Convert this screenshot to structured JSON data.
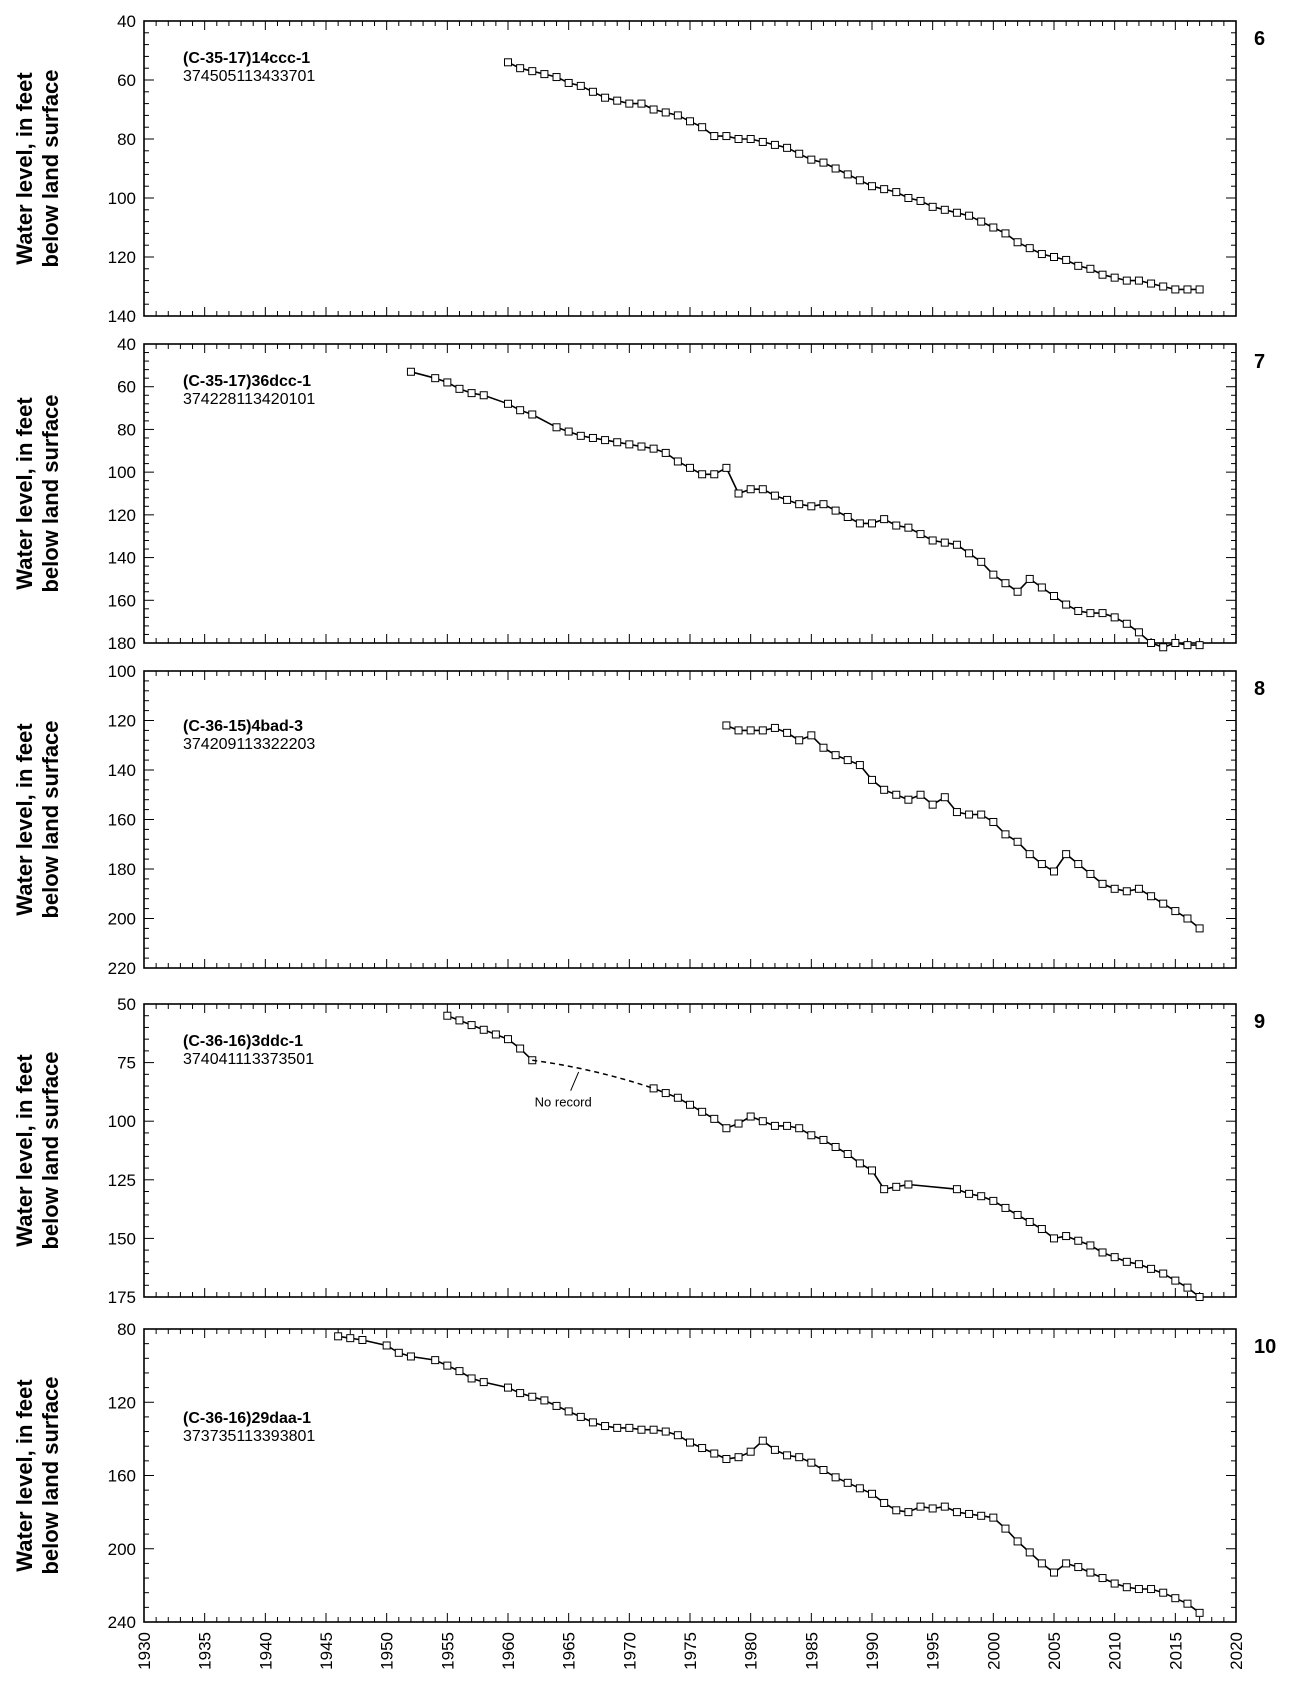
{
  "chart_data": [
    {
      "type": "line",
      "panel_number": "6",
      "well_name": "(C-35-17)14ccc-1",
      "site_id": "374505113433701",
      "ylabel": [
        "Water level, in feet",
        "below land surface"
      ],
      "ylim": [
        40,
        140
      ],
      "y_inverted": true,
      "y_ticks": [
        40,
        60,
        80,
        100,
        120,
        140
      ],
      "y_minor_step": 4,
      "xlim": [
        1930,
        2020
      ],
      "series": [
        {
          "x": [
            1960,
            1961,
            1962,
            1963,
            1964,
            1965,
            1966,
            1967,
            1968,
            1969,
            1970,
            1971,
            1972,
            1973,
            1974,
            1975,
            1976,
            1977,
            1978,
            1979,
            1980,
            1981,
            1982,
            1983,
            1984,
            1985,
            1986,
            1987,
            1988,
            1989,
            1990,
            1991,
            1992,
            1993,
            1994,
            1995,
            1996,
            1997,
            1998,
            1999,
            2000,
            2001,
            2002,
            2003,
            2004,
            2005,
            2006,
            2007,
            2008,
            2009,
            2010,
            2011,
            2012,
            2013,
            2014,
            2015,
            2016,
            2017
          ],
          "y": [
            54,
            56,
            57,
            58,
            59,
            61,
            62,
            64,
            66,
            67,
            68,
            68,
            70,
            71,
            72,
            74,
            76,
            79,
            79,
            80,
            80,
            81,
            82,
            83,
            85,
            87,
            88,
            90,
            92,
            94,
            96,
            97,
            98,
            100,
            101,
            103,
            104,
            105,
            106,
            108,
            110,
            112,
            115,
            117,
            119,
            120,
            121,
            123,
            124,
            126,
            127,
            128,
            128,
            129,
            130,
            131,
            131,
            131
          ]
        }
      ]
    },
    {
      "type": "line",
      "panel_number": "7",
      "well_name": "(C-35-17)36dcc-1",
      "site_id": "374228113420101",
      "ylabel": [
        "Water level, in feet",
        "below land surface"
      ],
      "ylim": [
        40,
        180
      ],
      "y_inverted": true,
      "y_ticks": [
        40,
        60,
        80,
        100,
        120,
        140,
        160,
        180
      ],
      "y_minor_step": 4,
      "xlim": [
        1930,
        2020
      ],
      "series": [
        {
          "x": [
            1952,
            1954,
            1955,
            1956,
            1957,
            1958,
            1960,
            1961,
            1962,
            1964,
            1965,
            1966,
            1967,
            1968,
            1969,
            1970,
            1971,
            1972,
            1973,
            1974,
            1975,
            1976,
            1977,
            1978,
            1979,
            1980,
            1981,
            1982,
            1983,
            1984,
            1985,
            1986,
            1987,
            1988,
            1989,
            1990,
            1991,
            1992,
            1993,
            1994,
            1995,
            1996,
            1997,
            1998,
            1999,
            2000,
            2001,
            2002,
            2003,
            2004,
            2005,
            2006,
            2007,
            2008,
            2009,
            2010,
            2011,
            2012,
            2013,
            2014,
            2015,
            2016,
            2017
          ],
          "y": [
            53,
            56,
            58,
            61,
            63,
            64,
            68,
            71,
            73,
            79,
            81,
            83,
            84,
            85,
            86,
            87,
            88,
            89,
            91,
            95,
            98,
            101,
            101,
            98,
            110,
            108,
            108,
            111,
            113,
            115,
            116,
            115,
            118,
            121,
            124,
            124,
            122,
            125,
            126,
            129,
            132,
            133,
            134,
            138,
            142,
            148,
            152,
            156,
            150,
            154,
            158,
            162,
            165,
            166,
            166,
            168,
            171,
            175,
            180,
            182,
            180,
            181,
            181
          ]
        }
      ]
    },
    {
      "type": "line",
      "panel_number": "8",
      "well_name": "(C-36-15)4bad-3",
      "site_id": "374209113322203",
      "ylabel": [
        "Water level, in feet",
        "below land surface"
      ],
      "ylim": [
        100,
        220
      ],
      "y_inverted": true,
      "y_ticks": [
        100,
        120,
        140,
        160,
        180,
        200,
        220
      ],
      "y_minor_step": 4,
      "xlim": [
        1930,
        2020
      ],
      "series": [
        {
          "x": [
            1978,
            1979,
            1980,
            1981,
            1982,
            1983,
            1984,
            1985,
            1986,
            1987,
            1988,
            1989,
            1990,
            1991,
            1992,
            1993,
            1994,
            1995,
            1996,
            1997,
            1998,
            1999,
            2000,
            2001,
            2002,
            2003,
            2004,
            2005,
            2006,
            2007,
            2008,
            2009,
            2010,
            2011,
            2012,
            2013,
            2014,
            2015,
            2016,
            2017
          ],
          "y": [
            122,
            124,
            124,
            124,
            123,
            125,
            128,
            126,
            131,
            134,
            136,
            138,
            144,
            148,
            150,
            152,
            150,
            154,
            151,
            157,
            158,
            158,
            161,
            166,
            169,
            174,
            178,
            181,
            174,
            178,
            182,
            186,
            188,
            189,
            188,
            191,
            194,
            197,
            200,
            204
          ]
        }
      ]
    },
    {
      "type": "line",
      "panel_number": "9",
      "well_name": "(C-36-16)3ddc-1",
      "site_id": "374041113373501",
      "ylabel": [
        "Water level, in feet",
        "below land surface"
      ],
      "ylim": [
        50,
        175
      ],
      "y_inverted": true,
      "y_ticks": [
        50,
        75,
        100,
        125,
        150,
        175
      ],
      "y_minor_step": 5,
      "xlim": [
        1930,
        2020
      ],
      "annotation": "No record",
      "series": [
        {
          "x": [
            1955,
            1956,
            1957,
            1958,
            1959,
            1960,
            1961,
            1962
          ],
          "y": [
            55,
            57,
            59,
            61,
            63,
            65,
            69,
            74
          ]
        },
        {
          "x": [
            1972,
            1973,
            1974,
            1975,
            1976,
            1977,
            1978,
            1979,
            1980,
            1981,
            1982,
            1983,
            1984,
            1985,
            1986,
            1987,
            1988,
            1989,
            1990,
            1991,
            1992,
            1993,
            1997,
            1998,
            1999,
            2000,
            2001,
            2002,
            2003,
            2004,
            2005,
            2006,
            2007,
            2008,
            2009,
            2010,
            2011,
            2012,
            2013,
            2014,
            2015,
            2016,
            2017
          ],
          "y": [
            86,
            88,
            90,
            93,
            96,
            99,
            103,
            101,
            98,
            100,
            102,
            102,
            103,
            106,
            108,
            111,
            114,
            118,
            121,
            129,
            128,
            127,
            129,
            131,
            132,
            134,
            137,
            140,
            143,
            146,
            150,
            149,
            151,
            153,
            156,
            158,
            160,
            161,
            163,
            165,
            168,
            171,
            175
          ]
        }
      ],
      "gap": {
        "x": [
          1962,
          1972
        ],
        "y": [
          74,
          86
        ],
        "style": "dashed"
      }
    },
    {
      "type": "line",
      "panel_number": "10",
      "well_name": "(C-36-16)29daa-1",
      "site_id": "373735113393801",
      "ylabel": [
        "Water level, in feet",
        "below land surface"
      ],
      "ylim": [
        80,
        240
      ],
      "y_inverted": true,
      "y_ticks": [
        80,
        120,
        160,
        200,
        240
      ],
      "y_minor_step": 8,
      "xlim": [
        1930,
        2020
      ],
      "x_ticks": [
        "1930",
        "1935",
        "1940",
        "1945",
        "1950",
        "1955",
        "1960",
        "1965",
        "1970",
        "1975",
        "1980",
        "1985",
        "1990",
        "1995",
        "2000",
        "2005",
        "2010",
        "2015",
        "2020"
      ],
      "series": [
        {
          "x": [
            1946,
            1947,
            1948,
            1950,
            1951,
            1952,
            1954,
            1955,
            1956,
            1957,
            1958,
            1960,
            1961,
            1962,
            1963,
            1964,
            1965,
            1966,
            1967,
            1968,
            1969,
            1970,
            1971,
            1972,
            1973,
            1974,
            1975,
            1976,
            1977,
            1978,
            1979,
            1980,
            1981,
            1982,
            1983,
            1984,
            1985,
            1986,
            1987,
            1988,
            1989,
            1990,
            1991,
            1992,
            1993,
            1994,
            1995,
            1996,
            1997,
            1998,
            1999,
            2000,
            2001,
            2002,
            2003,
            2004,
            2005,
            2006,
            2007,
            2008,
            2009,
            2010,
            2011,
            2012,
            2013,
            2014,
            2015,
            2016,
            2017
          ],
          "y": [
            84,
            85,
            86,
            89,
            93,
            95,
            97,
            100,
            103,
            107,
            109,
            112,
            115,
            117,
            119,
            122,
            125,
            128,
            131,
            133,
            134,
            134,
            135,
            135,
            136,
            138,
            142,
            145,
            148,
            151,
            150,
            147,
            141,
            146,
            149,
            150,
            153,
            157,
            161,
            164,
            167,
            170,
            175,
            179,
            180,
            177,
            178,
            177,
            180,
            181,
            182,
            183,
            189,
            196,
            202,
            208,
            213,
            208,
            210,
            213,
            216,
            219,
            221,
            222,
            222,
            224,
            227,
            230,
            235
          ]
        }
      ]
    }
  ]
}
